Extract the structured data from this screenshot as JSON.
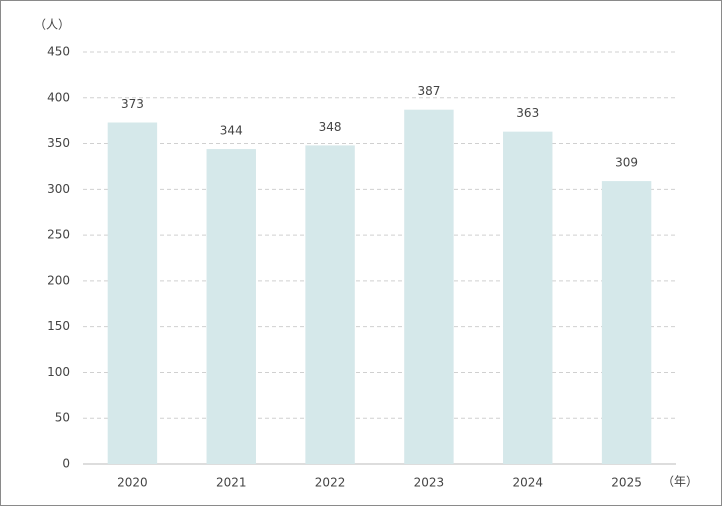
{
  "chart_data": {
    "type": "bar",
    "y_label": "（人）",
    "x_label": "（年）",
    "categories": [
      "2020",
      "2021",
      "2022",
      "2023",
      "2024",
      "2025"
    ],
    "values": [
      373,
      344,
      348,
      387,
      363,
      309
    ],
    "color": "#d5e8ea",
    "ylim": [
      0,
      450
    ],
    "yticks": [
      0,
      50,
      100,
      150,
      200,
      250,
      300,
      350,
      400,
      450
    ],
    "grid": true
  }
}
